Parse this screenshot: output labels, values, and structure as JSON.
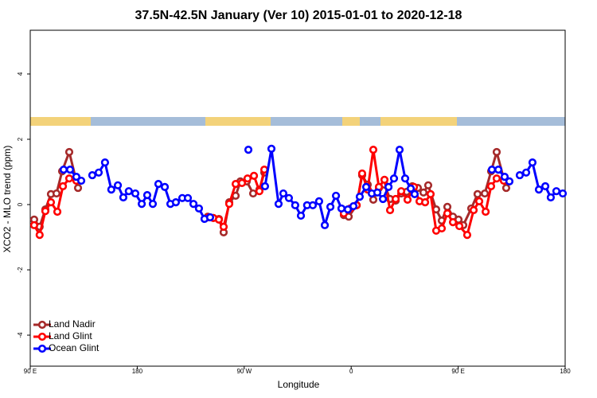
{
  "chart_data": {
    "type": "line",
    "title": "37.5N-42.5N January (Ver 10)   2015-01-01 to 2020-12-18",
    "x_label": "Longitude",
    "y_label": "XCO2 - MLO trend (ppm)",
    "xlim": [
      90,
      540
    ],
    "xticks": [
      {
        "value": 90,
        "label": "90 E"
      },
      180,
      {
        "value": 270,
        "label": "90 W"
      },
      {
        "value": 360,
        "label": "0"
      },
      {
        "value": 450,
        "label": "90 E"
      },
      {
        "value": 540,
        "label": "180"
      }
    ],
    "ylim": [
      -4.95,
      5.34
    ],
    "yticks": [
      -4,
      -2,
      0,
      2,
      4
    ],
    "legend_position": "bottom-left",
    "series": [
      {
        "name": "Land Nadir",
        "color": "#a52a2a",
        "x": [
          93.3,
          97.9,
          102.7,
          107.4,
          112.1,
          116.8,
          122.8,
          130.2,
          null,
          239.3,
          244,
          248.7,
          252.7,
          257.4,
          262.8,
          266.8,
          272.1,
          277.5,
          282.8,
          286.9,
          null,
          353.8,
          357.9,
          364.6,
          369.2,
          373.9,
          378.6,
          383.3,
          388,
          392.7,
          397.4,
          402.1,
          406.7,
          411.4,
          416.1,
          420.8,
          424.8,
          431.5,
          436.2,
          440.9,
          445.6,
          450.3,
          454.3,
          461,
          466.3,
          472.4,
          477.7,
          482.4,
          490.4
        ],
        "values": [
          -0.46,
          -0.68,
          -0.15,
          0.32,
          0.34,
          1.02,
          1.61,
          0.51,
          null,
          -0.37,
          -0.41,
          -0.44,
          -0.85,
          0.07,
          0.27,
          0.71,
          0.71,
          0.34,
          0.46,
          0.98,
          null,
          -0.32,
          -0.37,
          -0.02,
          0.9,
          0.61,
          0.15,
          0.51,
          0.61,
          0.17,
          0.12,
          0.34,
          0.39,
          0.56,
          0.51,
          0.37,
          0.59,
          -0.15,
          -0.49,
          -0.07,
          -0.37,
          -0.46,
          -0.63,
          -0.12,
          0.32,
          0.34,
          1.02,
          1.61,
          0.51
        ]
      },
      {
        "name": "Land Glint",
        "color": "#ff0000",
        "x": [
          93.3,
          97.9,
          102.7,
          107.4,
          112.8,
          117.5,
          122.8,
          128.8,
          null,
          240,
          244,
          248.7,
          252.7,
          257.4,
          262.8,
          268.1,
          272.8,
          278.2,
          282.8,
          286.9,
          null,
          353.8,
          359.2,
          364.6,
          369.2,
          373.9,
          378.6,
          383.3,
          388,
          392.7,
          397.4,
          402.1,
          407.4,
          412.8,
          417.5,
          422.2,
          426.8,
          431.5,
          436.2,
          440.9,
          445.6,
          451,
          457.6,
          463,
          467.7,
          473.1,
          477.7,
          482.4,
          488.4
        ],
        "values": [
          -0.63,
          -0.93,
          -0.2,
          0.07,
          -0.22,
          0.56,
          0.8,
          0.73,
          null,
          -0.39,
          -0.41,
          -0.46,
          -0.68,
          0.02,
          0.63,
          0.66,
          0.8,
          0.88,
          0.41,
          1.07,
          null,
          -0.27,
          -0.12,
          -0.02,
          0.95,
          0.46,
          1.68,
          0.54,
          0.76,
          -0.17,
          0.17,
          0.41,
          0.15,
          0.54,
          0.1,
          0.07,
          0.32,
          -0.8,
          -0.73,
          -0.27,
          -0.54,
          -0.66,
          -0.93,
          -0.17,
          0.1,
          -0.22,
          0.56,
          0.8,
          0.73
        ]
      },
      {
        "name": "Ocean Glint",
        "color": "#0000ff",
        "x": [
          118.1,
          123.5,
          128.8,
          132.9,
          null,
          142.2,
          147.6,
          152.9,
          158.2,
          163.7,
          168.3,
          172.9,
          178.4,
          183.8,
          188.4,
          193.1,
          197.8,
          203.2,
          207.9,
          212.5,
          217.9,
          222.6,
          227.3,
          231.9,
          236.6,
          241.3,
          null,
          273.5,
          null,
          287.5,
          292.9,
          298.9,
          302.9,
          307.6,
          312.9,
          317.7,
          322.9,
          327.7,
          333,
          337.8,
          342.5,
          347.2,
          351.8,
          357.2,
          361.9,
          367.2,
          372.6,
          377.3,
          382,
          386.7,
          391.4,
          396,
          400.7,
          405.4,
          410.1,
          413.4,
          null,
          478.4,
          483.8,
          489.1,
          493.1,
          null,
          501.8,
          507.2,
          512.5,
          517.9,
          523.3,
          527.9,
          532.6,
          538
        ],
        "values": [
          1.07,
          1.07,
          0.85,
          0.73,
          null,
          0.9,
          0.98,
          1.29,
          0.46,
          0.59,
          0.22,
          0.41,
          0.34,
          0.02,
          0.29,
          0.02,
          0.63,
          0.54,
          0.02,
          0.07,
          0.2,
          0.2,
          0.02,
          -0.12,
          -0.44,
          -0.39,
          null,
          1.68,
          null,
          0.56,
          1.71,
          0.02,
          0.34,
          0.2,
          -0.02,
          -0.34,
          -0.02,
          -0.02,
          0.1,
          -0.63,
          -0.07,
          0.27,
          -0.12,
          -0.15,
          -0.05,
          0.24,
          0.54,
          0.34,
          0.37,
          0.17,
          0.54,
          0.8,
          1.68,
          0.8,
          0.49,
          0.32,
          null,
          1.07,
          1.07,
          0.85,
          0.71,
          null,
          0.9,
          0.98,
          1.29,
          0.46,
          0.56,
          0.22,
          0.41,
          0.34
        ]
      }
    ]
  }
}
